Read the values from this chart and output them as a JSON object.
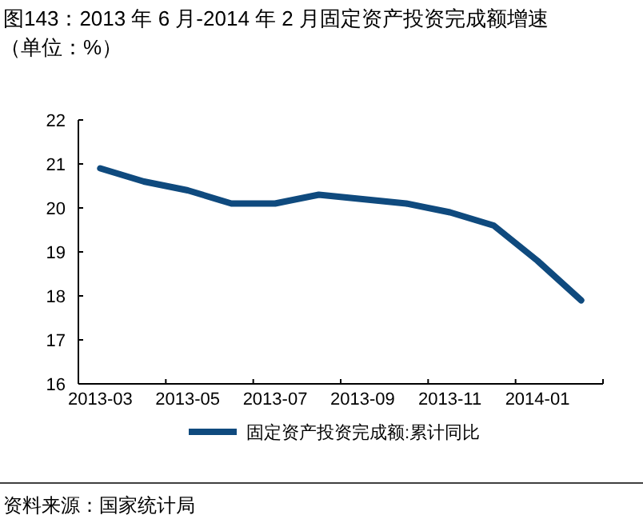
{
  "chart_data": {
    "type": "line",
    "title": "图143：2013 年 6 月-2014 年 2 月固定资产投资完成额增速",
    "subtitle": "（单位：%）",
    "categories": [
      "2013-03",
      null,
      "2013-05",
      null,
      "2013-07",
      null,
      "2013-09",
      null,
      "2013-11",
      null,
      "2014-01",
      null
    ],
    "series": [
      {
        "name": "固定资产投资完成额:累计同比",
        "color": "#0f4a7e",
        "values": [
          20.9,
          20.6,
          20.4,
          20.1,
          20.1,
          20.3,
          20.2,
          20.1,
          19.9,
          19.6,
          18.8,
          17.9
        ]
      }
    ],
    "ylim": [
      16,
      22
    ],
    "yticks": [
      16,
      17,
      18,
      19,
      20,
      21,
      22
    ],
    "grid": false,
    "legend": "bottom",
    "marker": "none",
    "line_style": "solid",
    "annotations": [
      "资料来源：国家统计局"
    ]
  }
}
